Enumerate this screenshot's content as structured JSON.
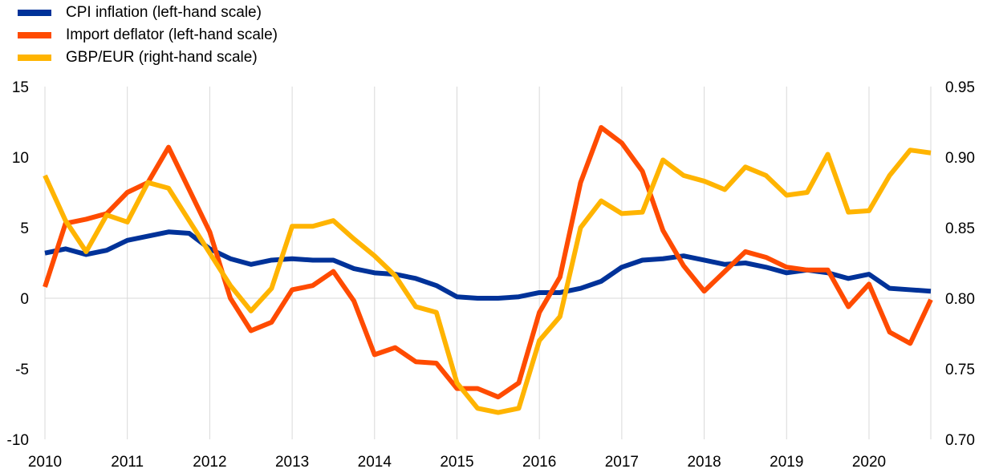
{
  "chart_data": {
    "type": "line",
    "x_quarters": [
      "2010Q1",
      "2010Q2",
      "2010Q3",
      "2010Q4",
      "2011Q1",
      "2011Q2",
      "2011Q3",
      "2011Q4",
      "2012Q1",
      "2012Q2",
      "2012Q3",
      "2012Q4",
      "2013Q1",
      "2013Q2",
      "2013Q3",
      "2013Q4",
      "2014Q1",
      "2014Q2",
      "2014Q3",
      "2014Q4",
      "2015Q1",
      "2015Q2",
      "2015Q3",
      "2015Q4",
      "2016Q1",
      "2016Q2",
      "2016Q3",
      "2016Q4",
      "2017Q1",
      "2017Q2",
      "2017Q3",
      "2017Q4",
      "2018Q1",
      "2018Q2",
      "2018Q3",
      "2018Q4",
      "2019Q1",
      "2019Q2",
      "2019Q3",
      "2019Q4",
      "2020Q1",
      "2020Q2",
      "2020Q3",
      "2020Q4"
    ],
    "x_tick_labels": [
      "2010",
      "2011",
      "2012",
      "2013",
      "2014",
      "2015",
      "2016",
      "2017",
      "2018",
      "2019",
      "2020"
    ],
    "y_left": {
      "ticks": [
        "15",
        "10",
        "5",
        "0",
        "-5",
        "-10"
      ],
      "range": [
        -10,
        15
      ]
    },
    "y_right": {
      "ticks": [
        "0.95",
        "0.90",
        "0.85",
        "0.80",
        "0.75",
        "0.70"
      ],
      "range": [
        0.7,
        0.95
      ]
    },
    "grid": "vertical",
    "legend_position": "top-left",
    "series": [
      {
        "name": "CPI inflation (left-hand scale)",
        "axis": "left",
        "color": "#003299",
        "values": [
          3.2,
          3.5,
          3.1,
          3.4,
          4.1,
          4.4,
          4.7,
          4.6,
          3.5,
          2.8,
          2.4,
          2.7,
          2.8,
          2.7,
          2.7,
          2.1,
          1.8,
          1.7,
          1.4,
          0.9,
          0.1,
          0.0,
          0.0,
          0.1,
          0.4,
          0.4,
          0.7,
          1.2,
          2.2,
          2.7,
          2.8,
          3.0,
          2.7,
          2.4,
          2.5,
          2.2,
          1.8,
          2.0,
          1.8,
          1.4,
          1.7,
          0.7,
          0.6,
          0.5
        ]
      },
      {
        "name": "Import deflator (left-hand scale)",
        "axis": "left",
        "color": "#FF4B00",
        "values": [
          0.8,
          5.3,
          5.6,
          6.0,
          7.5,
          8.2,
          10.7,
          7.7,
          4.7,
          0.0,
          -2.3,
          -1.7,
          0.6,
          0.9,
          1.9,
          -0.2,
          -4.0,
          -3.5,
          -4.5,
          -4.6,
          -6.4,
          -6.4,
          -7.0,
          -6.0,
          -1.0,
          1.5,
          8.2,
          12.1,
          11.0,
          9.0,
          4.8,
          2.3,
          0.5,
          1.9,
          3.3,
          2.9,
          2.2,
          2.0,
          2.0,
          -0.6,
          1.0,
          -2.4,
          -3.2,
          -0.1
        ]
      },
      {
        "name": "GBP/EUR (right-hand scale)",
        "axis": "right",
        "color": "#FFB400",
        "values": [
          0.887,
          0.855,
          0.833,
          0.859,
          0.854,
          0.882,
          0.878,
          0.855,
          0.832,
          0.809,
          0.791,
          0.807,
          0.851,
          0.851,
          0.855,
          0.842,
          0.83,
          0.816,
          0.794,
          0.79,
          0.74,
          0.722,
          0.719,
          0.722,
          0.77,
          0.787,
          0.85,
          0.869,
          0.86,
          0.861,
          0.898,
          0.887,
          0.883,
          0.877,
          0.893,
          0.887,
          0.873,
          0.875,
          0.902,
          0.861,
          0.862,
          0.887,
          0.905,
          0.903
        ]
      }
    ]
  }
}
